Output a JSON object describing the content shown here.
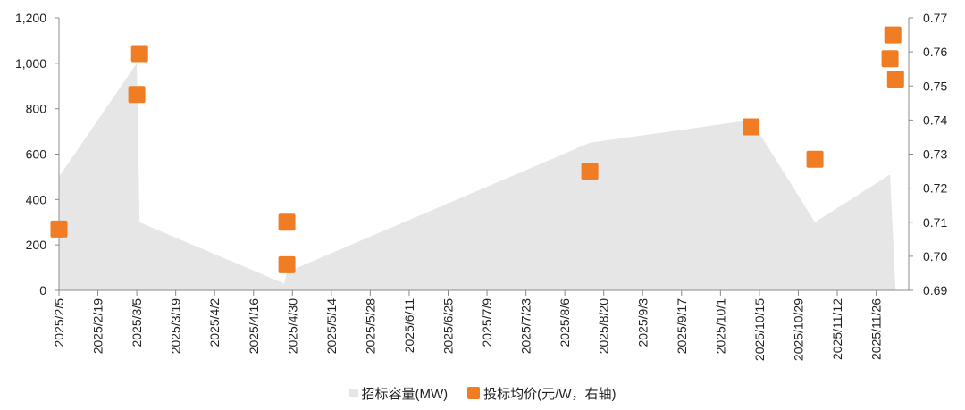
{
  "chart_data": {
    "type": "area",
    "x_ticks": [
      "2025/2/5",
      "2025/2/19",
      "2025/3/5",
      "2025/3/19",
      "2025/4/2",
      "2025/4/16",
      "2025/4/30",
      "2025/5/14",
      "2025/5/28",
      "2025/6/11",
      "2025/6/25",
      "2025/7/9",
      "2025/7/23",
      "2025/8/6",
      "2025/8/20",
      "2025/9/3",
      "2025/9/17",
      "2025/10/1",
      "2025/10/15",
      "2025/10/29",
      "2025/11/12",
      "2025/11/26"
    ],
    "y_left_ticks": [
      "0",
      "200",
      "400",
      "600",
      "800",
      "1,000",
      "1,200"
    ],
    "y_left_range": [
      0,
      1200
    ],
    "y_right_ticks": [
      "0.69",
      "0.70",
      "0.71",
      "0.72",
      "0.73",
      "0.74",
      "0.75",
      "0.76",
      "0.77"
    ],
    "y_right_range": [
      0.69,
      0.77
    ],
    "series": [
      {
        "name": "招标容量(MW)",
        "type": "area",
        "axis": "left",
        "color": "#e6e6e6",
        "points": [
          {
            "x": "2025/2/5",
            "y": 500
          },
          {
            "x": "2025/3/5",
            "y": 1000
          },
          {
            "x": "2025/3/6",
            "y": 300
          },
          {
            "x": "2025/4/27",
            "y": 30
          },
          {
            "x": "2025/4/28",
            "y": 80
          },
          {
            "x": "2025/8/15",
            "y": 650
          },
          {
            "x": "2025/10/12",
            "y": 750
          },
          {
            "x": "2025/11/4",
            "y": 300
          },
          {
            "x": "2025/12/1",
            "y": 510
          },
          {
            "x": "2025/12/3",
            "y": 0
          }
        ]
      },
      {
        "name": "投标均价(元/W，右轴)",
        "type": "scatter",
        "axis": "right",
        "color": "#f07c24",
        "points": [
          {
            "x": "2025/2/5",
            "y": 0.708
          },
          {
            "x": "2025/3/5",
            "y": 0.7475
          },
          {
            "x": "2025/3/6",
            "y": 0.7595
          },
          {
            "x": "2025/4/28",
            "y": 0.71
          },
          {
            "x": "2025/4/28",
            "y": 0.6975
          },
          {
            "x": "2025/8/15",
            "y": 0.725
          },
          {
            "x": "2025/10/12",
            "y": 0.738
          },
          {
            "x": "2025/11/4",
            "y": 0.7285
          },
          {
            "x": "2025/12/1",
            "y": 0.758
          },
          {
            "x": "2025/12/2",
            "y": 0.765
          },
          {
            "x": "2025/12/3",
            "y": 0.752
          }
        ]
      }
    ],
    "legend_position": "bottom",
    "grid": false
  },
  "legend": {
    "area_label": "招标容量(MW)",
    "scatter_label": "投标均价(元/W，右轴)"
  }
}
